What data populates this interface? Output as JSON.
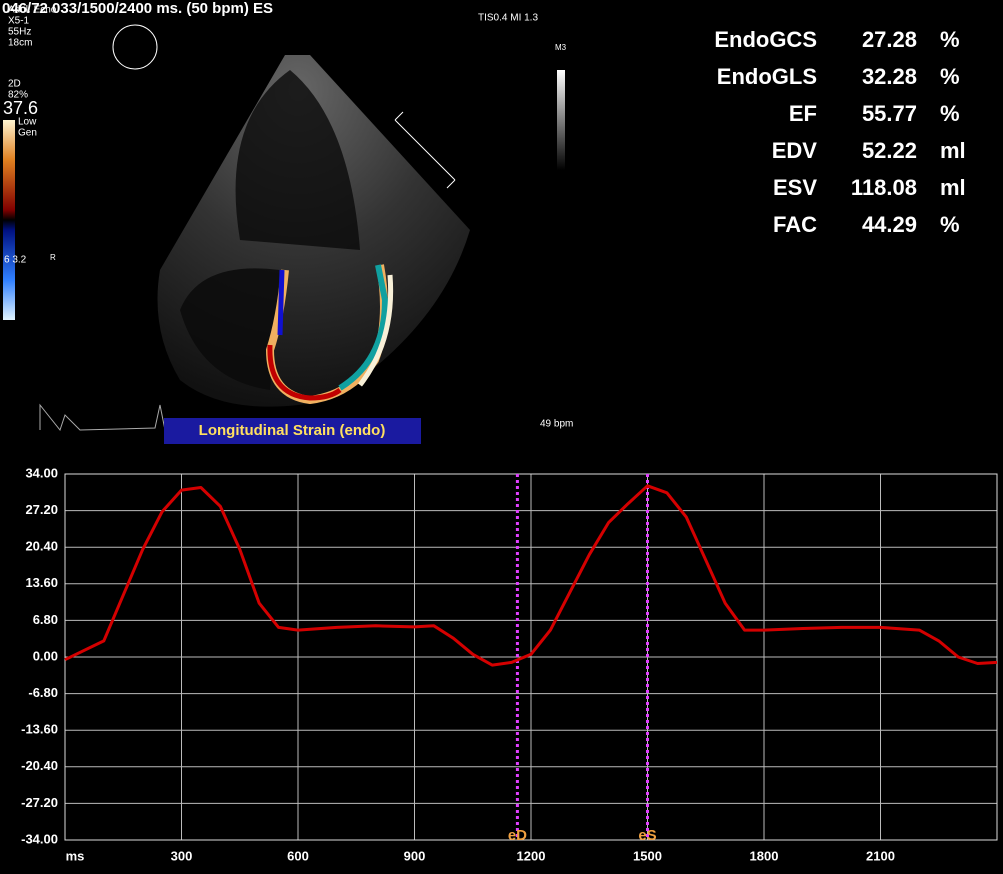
{
  "screen": {
    "header": "046/72  033/1500/2400 ms.  (50 bpm)  ES",
    "tis": "TIS0.4   MI 1.3",
    "probe": [
      "Adul. Echo",
      "X5-1",
      "55Hz",
      "18cm",
      "2D",
      "82%"
    ],
    "depth": "37.6",
    "mode": [
      "Low",
      "Gen"
    ],
    "scale": "6  3.2",
    "r": "R",
    "map": "M3",
    "hr": "49 bpm",
    "metrics": [
      [
        "EndoGCS",
        27.28,
        "%"
      ],
      [
        "EndoGLS",
        32.28,
        "%"
      ],
      [
        "EF",
        55.77,
        "%"
      ],
      [
        "EDV",
        52.22,
        "ml"
      ],
      [
        "ESV",
        118.08,
        "ml"
      ],
      [
        "FAC",
        44.29,
        "%"
      ]
    ]
  },
  "chart_data": {
    "type": "line",
    "title": "Longitudinal Strain (endo)",
    "x": [
      0,
      100,
      200,
      250,
      300,
      350,
      400,
      450,
      500,
      550,
      600,
      700,
      800,
      900,
      950,
      1000,
      1050,
      1100,
      1150,
      1200,
      1250,
      1300,
      1350,
      1400,
      1450,
      1500,
      1550,
      1600,
      1650,
      1700,
      1750,
      1800,
      1900,
      2000,
      2100,
      2200,
      2250,
      2300,
      2350,
      2400
    ],
    "series": [
      {
        "color": "#d40000",
        "values": [
          -0.5,
          3,
          20,
          27,
          31,
          31.5,
          28,
          20,
          10,
          5.5,
          5,
          5.5,
          5.8,
          5.6,
          5.8,
          3.5,
          0.5,
          -1.5,
          -1,
          0.5,
          5,
          12,
          19,
          25,
          28.5,
          31.8,
          30.5,
          26,
          18,
          10,
          5,
          5,
          5.3,
          5.5,
          5.5,
          5,
          3,
          0,
          -1.2,
          -1
        ]
      }
    ],
    "xlim": [
      0,
      2400
    ],
    "xticks": [
      {
        "value": 0,
        "label": "ms"
      },
      300,
      600,
      900,
      1200,
      1500,
      1800,
      2100
    ],
    "ylim": [
      -34,
      34
    ],
    "yticks": [
      {
        "value": 34,
        "label": "34.00"
      },
      {
        "value": 27.2,
        "label": "27.20"
      },
      {
        "value": 20.4,
        "label": "20.40"
      },
      {
        "value": 13.6,
        "label": "13.60"
      },
      {
        "value": 6.8,
        "label": "6.80"
      },
      {
        "value": 0,
        "label": "0.00"
      },
      {
        "value": -6.8,
        "label": "-6.80"
      },
      {
        "value": -13.6,
        "label": "-13.60"
      },
      {
        "value": -20.4,
        "label": "-20.40"
      },
      {
        "value": -27.2,
        "label": "-27.20"
      },
      {
        "value": -34,
        "label": "-34.00"
      }
    ],
    "grid": true,
    "markers": [
      {
        "x": 1165,
        "label": "eD"
      },
      {
        "x": 1500,
        "label": "eS"
      }
    ]
  }
}
